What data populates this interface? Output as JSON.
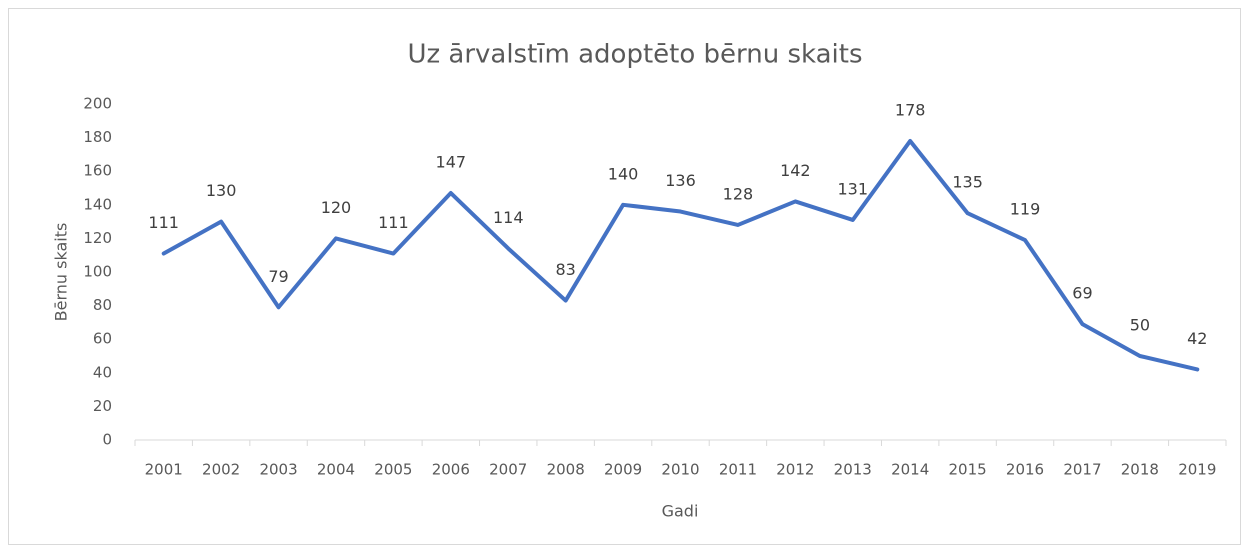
{
  "chart_data": {
    "type": "line",
    "title": "Uz ārvalstīm adoptēto bērnu skaits",
    "x_label": "Gadi",
    "y_label": "Bērnu skaits",
    "categories": [
      "2001",
      "2002",
      "2003",
      "2004",
      "2005",
      "2006",
      "2007",
      "2008",
      "2009",
      "2010",
      "2011",
      "2012",
      "2013",
      "2014",
      "2015",
      "2016",
      "2017",
      "2018",
      "2019"
    ],
    "series": [
      {
        "name": "Bērnu skaits",
        "color": "#4472c4",
        "values": [
          111,
          130,
          79,
          120,
          111,
          147,
          114,
          83,
          140,
          136,
          128,
          142,
          131,
          178,
          135,
          119,
          69,
          50,
          42
        ]
      }
    ],
    "ylim": [
      0,
      200
    ],
    "yticks": [
      0,
      20,
      40,
      60,
      80,
      100,
      120,
      140,
      160,
      180,
      200
    ],
    "grid": false
  }
}
